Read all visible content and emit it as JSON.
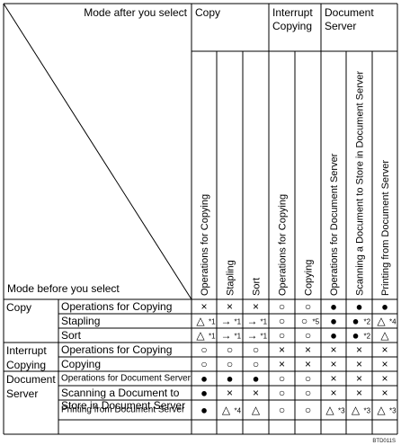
{
  "header": {
    "mode_after_label": "Mode after you select",
    "mode_before_label": "Mode before you select",
    "groups": [
      {
        "lines": [
          "Copy"
        ]
      },
      {
        "lines": [
          "Interrupt",
          "Copying"
        ]
      },
      {
        "lines": [
          "Document",
          "Server"
        ]
      }
    ],
    "columns": [
      "Operations for Copying",
      "Stapling",
      "Sort",
      "Operations for Copying",
      "Copying",
      "Operations for Document Server",
      "Scanning a Document to Store in Document Server",
      "Printing from Document Server"
    ]
  },
  "row_groups": [
    {
      "lines": [
        "Copy"
      ]
    },
    {
      "lines": [
        "Interrupt",
        "Copying"
      ]
    },
    {
      "lines": [
        "Document",
        "Server"
      ]
    }
  ],
  "rows": [
    {
      "label": [
        "Operations for Copying"
      ],
      "cells": [
        "×",
        "×",
        "×",
        "○",
        "○",
        "●",
        "●",
        "●"
      ]
    },
    {
      "label": [
        "Stapling"
      ],
      "cells": [
        "△*1",
        "→*1",
        "→*1",
        "○",
        "○*5",
        "●",
        "●*2",
        "△*4"
      ]
    },
    {
      "label": [
        "Sort"
      ],
      "cells": [
        "△*1",
        "→*1",
        "→*1",
        "○",
        "○",
        "●",
        "●*2",
        "△"
      ]
    },
    {
      "label": [
        "Operations for Copying"
      ],
      "cells": [
        "○",
        "○",
        "○",
        "×",
        "×",
        "×",
        "×",
        "×"
      ]
    },
    {
      "label": [
        "Copying"
      ],
      "cells": [
        "○",
        "○",
        "○",
        "×",
        "×",
        "×",
        "×",
        "×"
      ]
    },
    {
      "label": [
        "Operations for Document Server"
      ],
      "cells": [
        "●",
        "●",
        "●",
        "○",
        "○",
        "×",
        "×",
        "×"
      ]
    },
    {
      "label": [
        "Scanning a Document to",
        "Store in Document Server"
      ],
      "cells": [
        "●",
        "×",
        "×",
        "○",
        "○",
        "×",
        "×",
        "×"
      ]
    },
    {
      "label": [
        "Printing from Document Server"
      ],
      "cells": [
        "●",
        "△*4",
        "△",
        "○",
        "○",
        "△*3",
        "△*3",
        "△*3"
      ]
    }
  ],
  "doc_id": "BTD011S"
}
